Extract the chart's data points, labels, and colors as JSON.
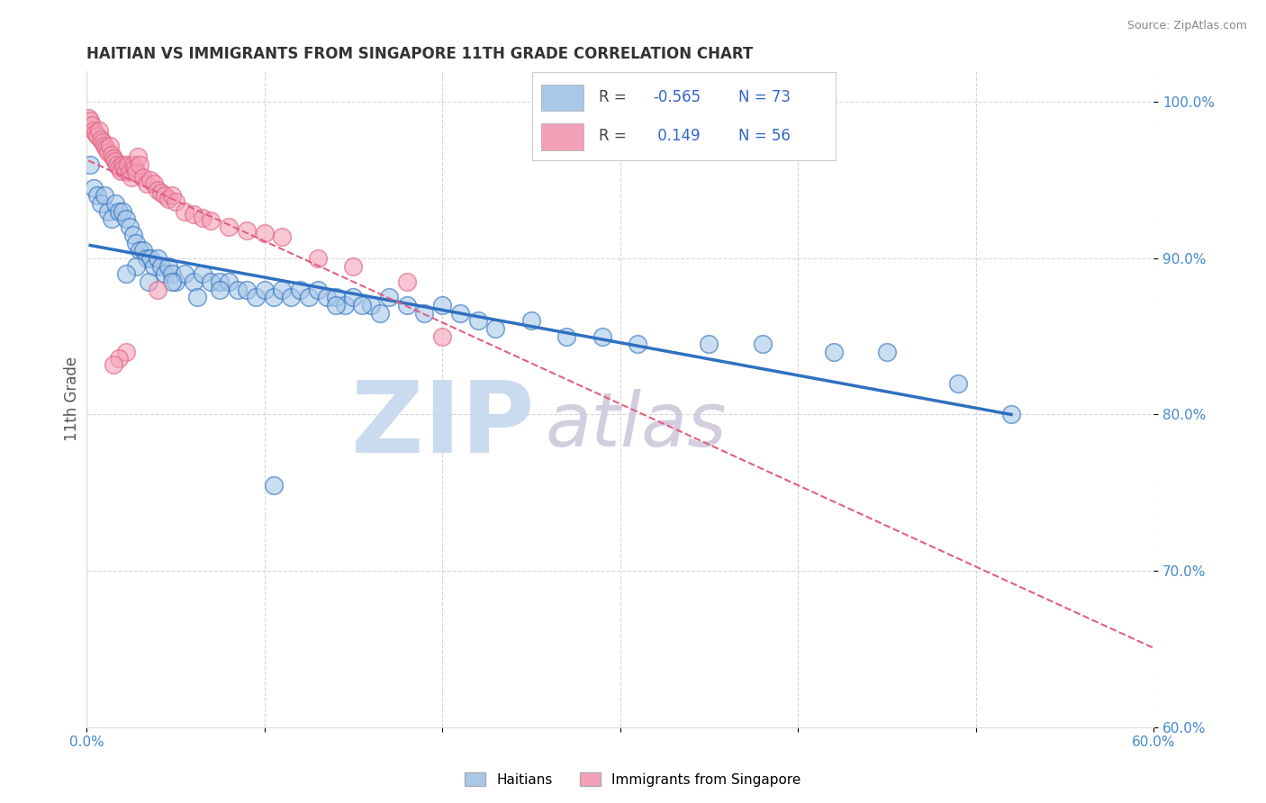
{
  "title": "HAITIAN VS IMMIGRANTS FROM SINGAPORE 11TH GRADE CORRELATION CHART",
  "source": "Source: ZipAtlas.com",
  "ylabel": "11th Grade",
  "xlim": [
    0.0,
    0.6
  ],
  "ylim": [
    0.6,
    1.02
  ],
  "xticks": [
    0.0,
    0.1,
    0.2,
    0.3,
    0.4,
    0.5,
    0.6
  ],
  "yticks": [
    0.6,
    0.7,
    0.8,
    0.9,
    1.0
  ],
  "legend_R1": "-0.565",
  "legend_N1": "73",
  "legend_R2": "0.149",
  "legend_N2": "56",
  "blue_color": "#a8c8e8",
  "pink_color": "#f4a0b8",
  "blue_line_color": "#3070c0",
  "pink_line_color": "#e06080",
  "blue_x": [
    0.002,
    0.004,
    0.006,
    0.008,
    0.01,
    0.012,
    0.014,
    0.016,
    0.018,
    0.02,
    0.022,
    0.024,
    0.026,
    0.028,
    0.03,
    0.032,
    0.034,
    0.036,
    0.038,
    0.04,
    0.042,
    0.044,
    0.046,
    0.048,
    0.05,
    0.055,
    0.06,
    0.065,
    0.07,
    0.075,
    0.08,
    0.085,
    0.09,
    0.095,
    0.1,
    0.105,
    0.11,
    0.115,
    0.12,
    0.125,
    0.13,
    0.135,
    0.14,
    0.145,
    0.15,
    0.16,
    0.17,
    0.18,
    0.19,
    0.2,
    0.21,
    0.22,
    0.23,
    0.25,
    0.27,
    0.29,
    0.31,
    0.35,
    0.38,
    0.42,
    0.45,
    0.49,
    0.52,
    0.14,
    0.155,
    0.165,
    0.105,
    0.075,
    0.062,
    0.048,
    0.035,
    0.028,
    0.022
  ],
  "blue_y": [
    0.96,
    0.945,
    0.94,
    0.935,
    0.94,
    0.93,
    0.925,
    0.935,
    0.93,
    0.93,
    0.925,
    0.92,
    0.915,
    0.91,
    0.905,
    0.905,
    0.9,
    0.9,
    0.895,
    0.9,
    0.895,
    0.89,
    0.895,
    0.89,
    0.885,
    0.89,
    0.885,
    0.89,
    0.885,
    0.885,
    0.885,
    0.88,
    0.88,
    0.875,
    0.88,
    0.875,
    0.88,
    0.875,
    0.88,
    0.875,
    0.88,
    0.875,
    0.875,
    0.87,
    0.875,
    0.87,
    0.875,
    0.87,
    0.865,
    0.87,
    0.865,
    0.86,
    0.855,
    0.86,
    0.85,
    0.85,
    0.845,
    0.845,
    0.845,
    0.84,
    0.84,
    0.82,
    0.8,
    0.87,
    0.87,
    0.865,
    0.755,
    0.88,
    0.875,
    0.885,
    0.885,
    0.895,
    0.89
  ],
  "pink_x": [
    0.001,
    0.002,
    0.003,
    0.004,
    0.005,
    0.006,
    0.007,
    0.008,
    0.009,
    0.01,
    0.011,
    0.012,
    0.013,
    0.014,
    0.015,
    0.016,
    0.017,
    0.018,
    0.019,
    0.02,
    0.021,
    0.022,
    0.023,
    0.024,
    0.025,
    0.026,
    0.027,
    0.028,
    0.029,
    0.03,
    0.032,
    0.034,
    0.036,
    0.038,
    0.04,
    0.042,
    0.044,
    0.046,
    0.048,
    0.05,
    0.055,
    0.06,
    0.065,
    0.07,
    0.08,
    0.09,
    0.1,
    0.11,
    0.13,
    0.15,
    0.18,
    0.2,
    0.04,
    0.022,
    0.018,
    0.015
  ],
  "pink_y": [
    0.99,
    0.988,
    0.985,
    0.982,
    0.98,
    0.978,
    0.982,
    0.976,
    0.974,
    0.972,
    0.97,
    0.968,
    0.972,
    0.966,
    0.964,
    0.962,
    0.96,
    0.958,
    0.956,
    0.96,
    0.958,
    0.956,
    0.96,
    0.955,
    0.952,
    0.96,
    0.958,
    0.955,
    0.965,
    0.96,
    0.952,
    0.948,
    0.95,
    0.948,
    0.944,
    0.942,
    0.94,
    0.938,
    0.94,
    0.936,
    0.93,
    0.928,
    0.926,
    0.924,
    0.92,
    0.918,
    0.916,
    0.914,
    0.9,
    0.895,
    0.885,
    0.85,
    0.88,
    0.84,
    0.836,
    0.832
  ],
  "background_color": "#ffffff",
  "grid_color": "#cccccc",
  "title_color": "#333333",
  "tick_color": "#4488cc",
  "ylabel_color": "#555555",
  "watermark_zip_color": "#c5d8ee",
  "watermark_atlas_color": "#d0c8dc"
}
